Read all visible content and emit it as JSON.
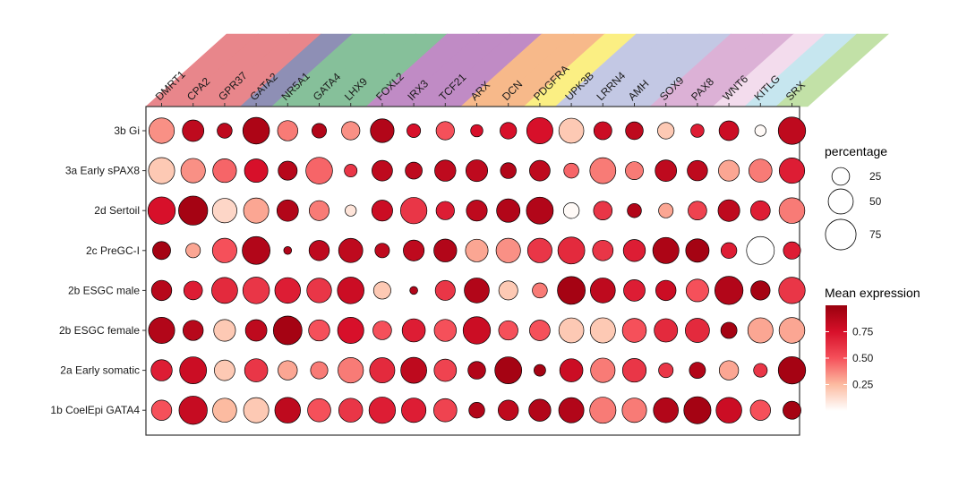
{
  "chart_data": {
    "type": "dotplot",
    "genes": [
      "DMRT1",
      "CPA2",
      "GPR37",
      "GATA2",
      "NR5A1",
      "GATA4",
      "LHX9",
      "FOXL2",
      "IRX3",
      "TCF21",
      "ARX",
      "DCN",
      "PDGFRA",
      "UPK3B",
      "LRRN4",
      "AMH",
      "SOX9",
      "PAX8",
      "WNT6",
      "KITLG",
      "SRX"
    ],
    "cell_types": [
      "3b Gi",
      "3a Early sPAX8",
      "2d Sertoil",
      "2c PreGC-I",
      "2b ESGC male",
      "2b ESGC female",
      "2a Early somatic",
      "1b CoelEpi GATA4"
    ],
    "gene_group_colors": [
      "#e8868b",
      "#e8868b",
      "#e8868b",
      "#8e8fb5",
      "#86c09a",
      "#86c09a",
      "#86c09a",
      "#c08bc5",
      "#c08bc5",
      "#c08bc5",
      "#f7b98a",
      "#f7b98a",
      "#fbef83",
      "#c3c8e4",
      "#c3c8e4",
      "#c3c8e4",
      "#dcb1d6",
      "#dcb1d6",
      "#f3dced",
      "#c6e6ef",
      "#c2e1a7"
    ],
    "percentage": [
      [
        52,
        37,
        18,
        57,
        33,
        17,
        27,
        45,
        15,
        27,
        12,
        22,
        55,
        50,
        26,
        25,
        22,
        14,
        31,
        10,
        60
      ],
      [
        55,
        48,
        45,
        44,
        29,
        57,
        13,
        34,
        23,
        36,
        38,
        20,
        34,
        18,
        54,
        26,
        37,
        33,
        35,
        43,
        52
      ],
      [
        60,
        68,
        48,
        51,
        37,
        32,
        10,
        35,
        56,
        27,
        35,
        44,
        58,
        20,
        28,
        16,
        17,
        28,
        38,
        31,
        53
      ],
      [
        26,
        17,
        48,
        62,
        5,
        33,
        47,
        17,
        35,
        42,
        41,
        48,
        48,
        58,
        34,
        39,
        55,
        44,
        20,
        62,
        24
      ],
      [
        33,
        28,
        54,
        57,
        53,
        49,
        57,
        24,
        5,
        32,
        50,
        29,
        18,
        62,
        50,
        37,
        33,
        41,
        64,
        30,
        56
      ],
      [
        55,
        33,
        38,
        37,
        66,
        36,
        55,
        28,
        43,
        39,
        60,
        30,
        34,
        50,
        51,
        46,
        44,
        47,
        21,
        51,
        53
      ],
      [
        36,
        58,
        34,
        43,
        30,
        24,
        52,
        51,
        54,
        40,
        25,
        58,
        11,
        43,
        48,
        45,
        17,
        21,
        30,
        15,
        60
      ],
      [
        33,
        64,
        46,
        51,
        53,
        43,
        46,
        56,
        48,
        43,
        20,
        33,
        39,
        51,
        55,
        48,
        50,
        59,
        53,
        33,
        26
      ]
    ],
    "mean_expression": [
      [
        0.35,
        0.85,
        0.85,
        0.92,
        0.4,
        0.9,
        0.35,
        0.9,
        0.75,
        0.5,
        0.75,
        0.75,
        0.75,
        0.2,
        0.8,
        0.85,
        0.2,
        0.7,
        0.8,
        0.02,
        0.85
      ],
      [
        0.2,
        0.35,
        0.45,
        0.75,
        0.88,
        0.45,
        0.6,
        0.85,
        0.85,
        0.85,
        0.85,
        0.9,
        0.85,
        0.45,
        0.4,
        0.4,
        0.85,
        0.85,
        0.3,
        0.4,
        0.7
      ],
      [
        0.75,
        0.95,
        0.15,
        0.3,
        0.9,
        0.4,
        0.1,
        0.8,
        0.6,
        0.7,
        0.85,
        0.9,
        0.9,
        0.02,
        0.6,
        0.9,
        0.3,
        0.55,
        0.85,
        0.7,
        0.4
      ],
      [
        0.95,
        0.3,
        0.5,
        0.9,
        0.9,
        0.85,
        0.85,
        0.85,
        0.85,
        0.9,
        0.3,
        0.35,
        0.6,
        0.65,
        0.6,
        0.7,
        0.92,
        0.95,
        0.7,
        0.0,
        0.7
      ],
      [
        0.88,
        0.7,
        0.65,
        0.6,
        0.7,
        0.6,
        0.8,
        0.2,
        0.9,
        0.6,
        0.9,
        0.2,
        0.4,
        0.95,
        0.85,
        0.7,
        0.8,
        0.5,
        0.9,
        0.95,
        0.6
      ],
      [
        0.9,
        0.88,
        0.2,
        0.85,
        0.95,
        0.5,
        0.75,
        0.5,
        0.7,
        0.5,
        0.8,
        0.5,
        0.5,
        0.2,
        0.2,
        0.5,
        0.65,
        0.65,
        0.95,
        0.3,
        0.3
      ],
      [
        0.7,
        0.8,
        0.2,
        0.6,
        0.3,
        0.4,
        0.4,
        0.65,
        0.85,
        0.55,
        0.9,
        0.95,
        0.95,
        0.8,
        0.4,
        0.6,
        0.6,
        0.9,
        0.3,
        0.6,
        0.95
      ],
      [
        0.5,
        0.82,
        0.25,
        0.2,
        0.85,
        0.5,
        0.6,
        0.7,
        0.7,
        0.55,
        0.9,
        0.85,
        0.9,
        0.9,
        0.4,
        0.4,
        0.9,
        0.95,
        0.8,
        0.5,
        0.95
      ]
    ],
    "xlabel": "",
    "ylabel": "",
    "size_legend": {
      "title": "percentage",
      "values": [
        "25",
        "50",
        "75"
      ]
    },
    "color_legend": {
      "title": "Mean expression",
      "ticks": [
        "0.75",
        "0.50",
        "0.25"
      ],
      "tick_values": [
        0.75,
        0.5,
        0.25
      ],
      "range": [
        0,
        1
      ],
      "low_color": "#ffffff",
      "high_color": "#99000d"
    }
  }
}
